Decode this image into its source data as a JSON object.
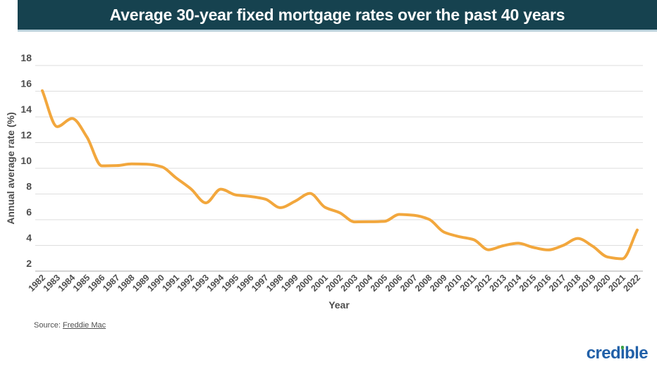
{
  "header": {
    "title": "Average 30-year fixed mortgage rates over the past 40 years",
    "bg_color": "#16424f",
    "underline_color": "#bad0da",
    "text_color": "#ffffff"
  },
  "chart_data": {
    "type": "line",
    "title": "Average 30-year fixed mortgage rates over the past 40 years",
    "xlabel": "Year",
    "ylabel": "Annual average rate (%)",
    "x": [
      1982,
      1983,
      1984,
      1985,
      1986,
      1987,
      1988,
      1989,
      1990,
      1991,
      1992,
      1993,
      1994,
      1995,
      1996,
      1997,
      1998,
      1999,
      2000,
      2001,
      2002,
      2003,
      2004,
      2005,
      2006,
      2007,
      2008,
      2009,
      2010,
      2011,
      2012,
      2013,
      2014,
      2015,
      2016,
      2017,
      2018,
      2019,
      2020,
      2021,
      2022
    ],
    "series": [
      {
        "name": "Average 30-year fixed mortgage rate (%)",
        "values": [
          16.04,
          13.24,
          13.88,
          12.43,
          10.19,
          10.21,
          10.34,
          10.32,
          10.13,
          9.25,
          8.39,
          7.31,
          8.38,
          7.93,
          7.81,
          7.6,
          6.94,
          7.44,
          8.05,
          6.97,
          6.54,
          5.83,
          5.84,
          5.87,
          6.41,
          6.34,
          6.03,
          5.04,
          4.69,
          4.45,
          3.66,
          3.98,
          4.17,
          3.85,
          3.65,
          3.99,
          4.54,
          3.94,
          3.1,
          2.96,
          5.2
        ]
      }
    ],
    "yticks": [
      18,
      16,
      14,
      12,
      10,
      8,
      6,
      4,
      2
    ],
    "ylim": [
      2,
      18
    ],
    "xlim": [
      1982,
      2022
    ],
    "grid": "horizontal",
    "legend": "none",
    "line_color": "#f2a73d",
    "grid_color": "#dedede",
    "axis_line_color": "#c6c6c6",
    "tick_text_color": "#4d4d4d"
  },
  "source": {
    "prefix": "Source:",
    "link_text": "Freddie Mac"
  },
  "logo": {
    "text": "credible",
    "color": "#2160a8",
    "dot_color": "#3fa347"
  }
}
